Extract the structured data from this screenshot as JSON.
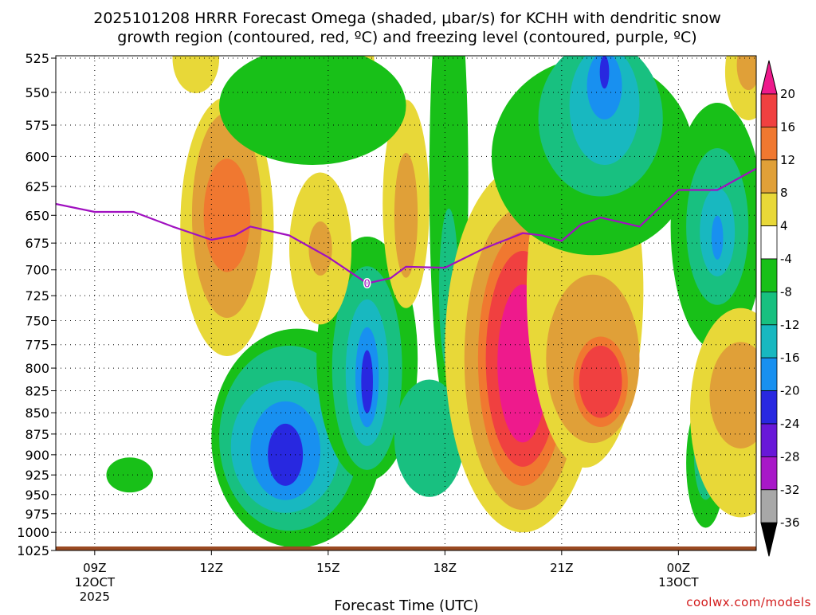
{
  "chart_data": {
    "type": "heatmap",
    "title_line1": "2025101208 HRRR Forecast Omega (shaded, μbar/s) for KCHH with dendritic snow",
    "title_line2": "growth region (contoured, red, ºC) and freezing level (contoured, purple, ºC)",
    "xlabel": "Forecast Time (UTC)",
    "y_axis_unit": "hPa",
    "y_ticks": [
      525,
      550,
      575,
      600,
      625,
      650,
      675,
      700,
      725,
      750,
      775,
      800,
      825,
      850,
      875,
      900,
      925,
      950,
      975,
      1000,
      1025
    ],
    "x_ticks": [
      {
        "hour": 9,
        "label": "09Z",
        "date1": "12OCT",
        "date2": "2025"
      },
      {
        "hour": 12,
        "label": "12Z",
        "date1": "",
        "date2": ""
      },
      {
        "hour": 15,
        "label": "15Z",
        "date1": "",
        "date2": ""
      },
      {
        "hour": 18,
        "label": "18Z",
        "date1": "",
        "date2": ""
      },
      {
        "hour": 21,
        "label": "21Z",
        "date1": "",
        "date2": ""
      },
      {
        "hour": 24,
        "label": "00Z",
        "date1": "13OCT",
        "date2": ""
      }
    ],
    "x_range_hours": [
      8,
      26
    ],
    "y_range_hpa": [
      525,
      1025
    ],
    "colorbar": {
      "levels": [
        20,
        16,
        12,
        8,
        4,
        -4,
        -8,
        -12,
        -16,
        -20,
        -24,
        -28,
        -32,
        -36
      ],
      "bins": [
        {
          "range": ">20",
          "color": "#ee1a8c"
        },
        {
          "range": "16 to 20",
          "color": "#f04040"
        },
        {
          "range": "12 to 16",
          "color": "#f07830"
        },
        {
          "range": "8 to 12",
          "color": "#e0a038"
        },
        {
          "range": "4 to 8",
          "color": "#e8d838"
        },
        {
          "range": "-4 to 4",
          "color": "#ffffff"
        },
        {
          "range": "-8 to -4",
          "color": "#18c018"
        },
        {
          "range": "-12 to -8",
          "color": "#18c080"
        },
        {
          "range": "-16 to -12",
          "color": "#18b8c0"
        },
        {
          "range": "-20 to -16",
          "color": "#1890f0"
        },
        {
          "range": "-24 to -20",
          "color": "#2828e0"
        },
        {
          "range": "-28 to -24",
          "color": "#6818d8"
        },
        {
          "range": "-32 to -28",
          "color": "#a818c8"
        },
        {
          "range": "-36 to -32",
          "color": "#a8a8a8"
        },
        {
          "range": "<-36",
          "color": "#000000"
        }
      ]
    },
    "omega_cells": [
      {
        "x": 9.9,
        "p": 925,
        "rx": 0.6,
        "rp": 22,
        "level": -6
      },
      {
        "x": 12.4,
        "p": 660,
        "rx": 1.2,
        "rp": 115,
        "level": 6
      },
      {
        "x": 12.4,
        "p": 650,
        "rx": 0.9,
        "rp": 90,
        "level": 10
      },
      {
        "x": 12.4,
        "p": 650,
        "rx": 0.6,
        "rp": 50,
        "level": 14
      },
      {
        "x": 11.6,
        "p": 525,
        "rx": 0.6,
        "rp": 25,
        "level": 6
      },
      {
        "x": 14.2,
        "p": 880,
        "rx": 2.2,
        "rp": 130,
        "level": -6
      },
      {
        "x": 14.0,
        "p": 880,
        "rx": 1.8,
        "rp": 110,
        "level": -10
      },
      {
        "x": 13.9,
        "p": 890,
        "rx": 1.4,
        "rp": 80,
        "level": -14
      },
      {
        "x": 13.9,
        "p": 895,
        "rx": 0.9,
        "rp": 60,
        "level": -18
      },
      {
        "x": 13.9,
        "p": 900,
        "rx": 0.45,
        "rp": 38,
        "level": -22
      },
      {
        "x": 16.0,
        "p": 790,
        "rx": 1.3,
        "rp": 130,
        "level": -6
      },
      {
        "x": 16.0,
        "p": 800,
        "rx": 0.9,
        "rp": 110,
        "level": -10
      },
      {
        "x": 16.0,
        "p": 805,
        "rx": 0.55,
        "rp": 80,
        "level": -14
      },
      {
        "x": 16.0,
        "p": 810,
        "rx": 0.3,
        "rp": 55,
        "level": -18
      },
      {
        "x": 16.0,
        "p": 815,
        "rx": 0.15,
        "rp": 35,
        "level": -22
      },
      {
        "x": 14.8,
        "p": 680,
        "rx": 0.8,
        "rp": 70,
        "level": 6
      },
      {
        "x": 14.8,
        "p": 680,
        "rx": 0.3,
        "rp": 25,
        "level": 10
      },
      {
        "x": 17.0,
        "p": 640,
        "rx": 0.6,
        "rp": 90,
        "level": 6
      },
      {
        "x": 17.0,
        "p": 650,
        "rx": 0.3,
        "rp": 55,
        "level": 10
      },
      {
        "x": 16.0,
        "p": 540,
        "rx": 0.2,
        "rp": 35,
        "level": 6
      },
      {
        "x": 18.1,
        "p": 620,
        "rx": 0.5,
        "rp": 190,
        "level": -6
      },
      {
        "x": 18.1,
        "p": 720,
        "rx": 0.25,
        "rp": 80,
        "level": -10
      },
      {
        "x": 17.6,
        "p": 880,
        "rx": 0.9,
        "rp": 70,
        "level": -10
      },
      {
        "x": 14.6,
        "p": 560,
        "rx": 2.4,
        "rp": 45,
        "level": -6
      },
      {
        "x": 20.0,
        "p": 780,
        "rx": 2.0,
        "rp": 190,
        "level": 6
      },
      {
        "x": 20.0,
        "p": 790,
        "rx": 1.5,
        "rp": 160,
        "level": 10
      },
      {
        "x": 20.0,
        "p": 790,
        "rx": 1.15,
        "rp": 135,
        "level": 14
      },
      {
        "x": 20.0,
        "p": 790,
        "rx": 0.95,
        "rp": 115,
        "level": 18
      },
      {
        "x": 20.0,
        "p": 795,
        "rx": 0.65,
        "rp": 85,
        "level": 22
      },
      {
        "x": 21.6,
        "p": 720,
        "rx": 1.5,
        "rp": 170,
        "level": 6
      },
      {
        "x": 21.8,
        "p": 790,
        "rx": 1.2,
        "rp": 90,
        "level": 10
      },
      {
        "x": 22.0,
        "p": 815,
        "rx": 0.7,
        "rp": 50,
        "level": 14
      },
      {
        "x": 22.0,
        "p": 815,
        "rx": 0.55,
        "rp": 40,
        "level": 18
      },
      {
        "x": 21.8,
        "p": 600,
        "rx": 2.6,
        "rp": 80,
        "level": -6
      },
      {
        "x": 22.0,
        "p": 570,
        "rx": 1.6,
        "rp": 60,
        "level": -10
      },
      {
        "x": 22.1,
        "p": 560,
        "rx": 0.9,
        "rp": 45,
        "level": -14
      },
      {
        "x": 22.1,
        "p": 545,
        "rx": 0.45,
        "rp": 25,
        "level": -18
      },
      {
        "x": 22.1,
        "p": 535,
        "rx": 0.12,
        "rp": 12,
        "level": -22
      },
      {
        "x": 25.0,
        "p": 660,
        "rx": 1.2,
        "rp": 110,
        "level": -6
      },
      {
        "x": 25.0,
        "p": 660,
        "rx": 0.8,
        "rp": 70,
        "level": -10
      },
      {
        "x": 25.0,
        "p": 665,
        "rx": 0.45,
        "rp": 40,
        "level": -14
      },
      {
        "x": 25.0,
        "p": 670,
        "rx": 0.15,
        "rp": 20,
        "level": -18
      },
      {
        "x": 24.7,
        "p": 910,
        "rx": 0.5,
        "rp": 80,
        "level": -6
      },
      {
        "x": 24.7,
        "p": 900,
        "rx": 0.3,
        "rp": 55,
        "level": -10
      },
      {
        "x": 25.6,
        "p": 850,
        "rx": 1.3,
        "rp": 120,
        "level": 6
      },
      {
        "x": 25.6,
        "p": 830,
        "rx": 0.8,
        "rp": 60,
        "level": 10
      },
      {
        "x": 25.8,
        "p": 535,
        "rx": 0.6,
        "rp": 35,
        "level": 6
      },
      {
        "x": 25.8,
        "p": 530,
        "rx": 0.3,
        "rp": 18,
        "level": 10
      }
    ],
    "freezing_level_series": {
      "name": "freezing level (0 ºC)",
      "hours": [
        8.0,
        9.0,
        10.0,
        11.0,
        12.0,
        12.6,
        13.0,
        14.0,
        15.0,
        16.0,
        16.6,
        17.0,
        18.0,
        19.0,
        20.0,
        20.5,
        21.0,
        21.5,
        22.0,
        23.0,
        24.0,
        25.0,
        26.0
      ],
      "hpa": [
        640,
        647,
        647,
        660,
        672,
        668,
        660,
        668,
        688,
        713,
        708,
        697,
        698,
        680,
        666,
        668,
        673,
        658,
        652,
        660,
        628,
        628,
        610
      ],
      "color": "#a010c0",
      "label": "0",
      "label_hour": 16.0
    },
    "ground_color": "#9a4a22"
  },
  "watermark": "coolwx.com/models"
}
